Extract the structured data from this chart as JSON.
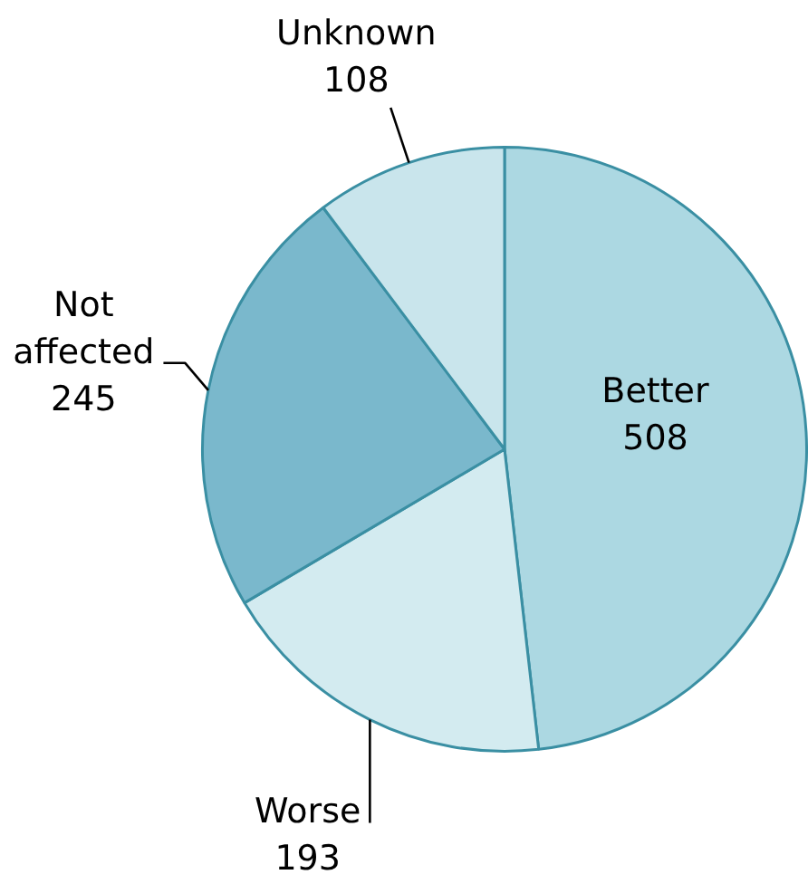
{
  "chart_data": {
    "type": "pie",
    "categories": [
      "Better",
      "Worse",
      "Not affected",
      "Unknown"
    ],
    "values": [
      508,
      193,
      245,
      108
    ],
    "colors": [
      "#acd8e2",
      "#d3ebf0",
      "#7ab8cc",
      "#c9e5ec"
    ],
    "data_labels": true
  }
}
